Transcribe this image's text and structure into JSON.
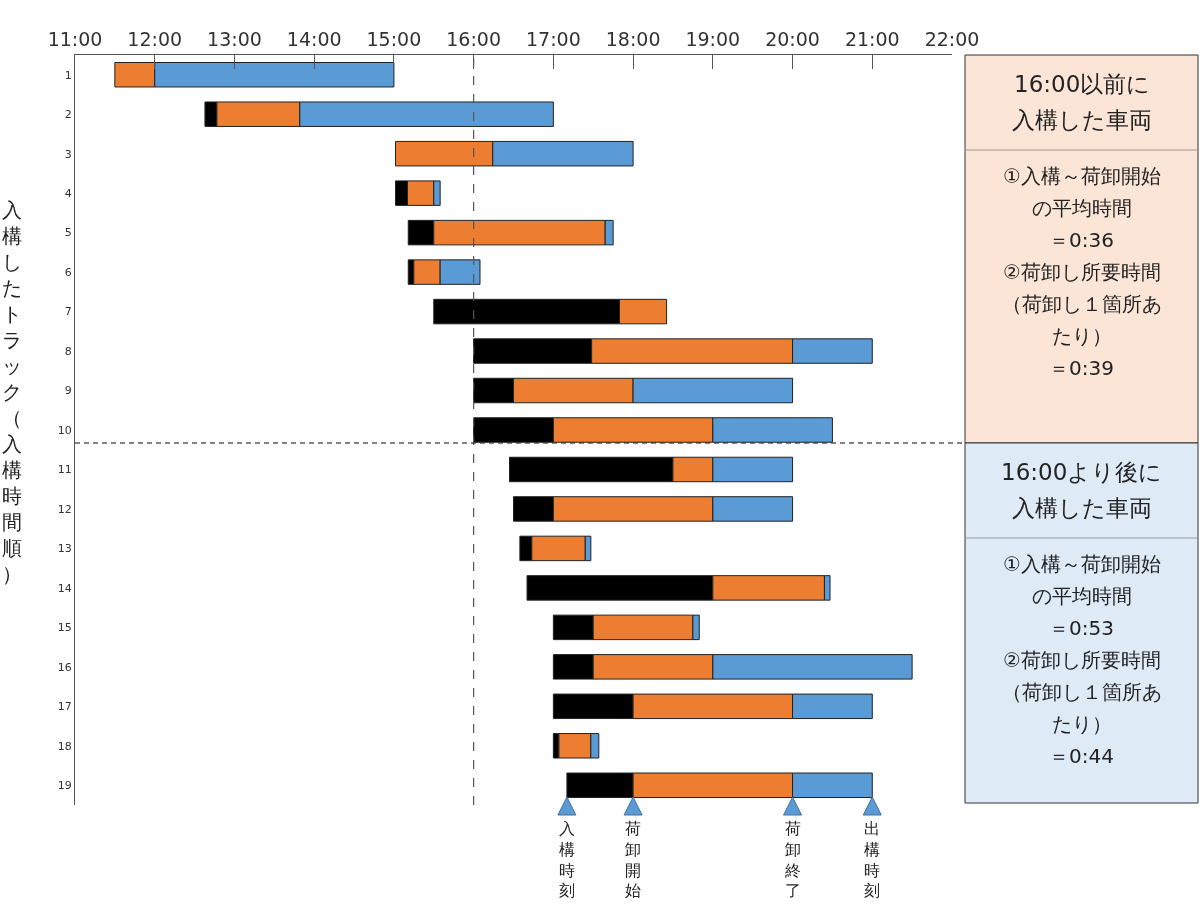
{
  "chart_data": {
    "type": "bar",
    "orientation": "horizontal",
    "categories": [
      "1",
      "2",
      "3",
      "4",
      "5",
      "6",
      "7",
      "8",
      "9",
      "10",
      "11",
      "12",
      "13",
      "14",
      "15",
      "16",
      "17",
      "18",
      "19"
    ],
    "series": [
      {
        "color": "#000000",
        "base": [
          null,
          12.63,
          null,
          15.02,
          15.18,
          15.18,
          15.5,
          16,
          16,
          16,
          16.45,
          16.5,
          16.58,
          16.67,
          17,
          17,
          17,
          17,
          17.17
        ],
        "values": [
          null,
          0.15,
          null,
          0.15,
          0.32,
          0.07,
          2.33,
          1.48,
          0.5,
          1,
          2.05,
          0.5,
          0.15,
          2.33,
          0.5,
          0.5,
          1,
          0.07,
          0.83
        ]
      },
      {
        "color": "#ed7d31",
        "base": [
          11.5,
          12.78,
          15.02,
          15.17,
          15.5,
          15.25,
          17.83,
          17.48,
          16.5,
          17,
          18.5,
          17,
          16.73,
          19,
          17.5,
          17.5,
          18,
          17.07,
          18
        ],
        "values": [
          0.5,
          1.04,
          1.22,
          0.33,
          2.15,
          0.33,
          0.59,
          2.52,
          1.5,
          2,
          0.5,
          2,
          0.67,
          1.4,
          1.25,
          1.5,
          2,
          0.4,
          2
        ]
      },
      {
        "color": "#5b9bd5",
        "base": [
          12,
          13.82,
          16.24,
          15.5,
          17.65,
          15.58,
          null,
          20,
          18,
          19,
          19,
          19,
          17.4,
          20.4,
          18.75,
          19,
          20,
          17.47,
          20
        ],
        "values": [
          3,
          3.18,
          1.76,
          0.08,
          0.1,
          0.5,
          null,
          1,
          2,
          1.5,
          1,
          1,
          0.07,
          0.07,
          0.08,
          2.5,
          1,
          0.1,
          1
        ]
      }
    ],
    "xlim": [
      11,
      22
    ],
    "xticks": [
      {
        "value": 11,
        "label": "11:00"
      },
      {
        "value": 12,
        "label": "12:00"
      },
      {
        "value": 13,
        "label": "13:00"
      },
      {
        "value": 14,
        "label": "14:00"
      },
      {
        "value": 15,
        "label": "15:00"
      },
      {
        "value": 16,
        "label": "16:00"
      },
      {
        "value": 17,
        "label": "17:00"
      },
      {
        "value": 18,
        "label": "18:00"
      },
      {
        "value": 19,
        "label": "19:00"
      },
      {
        "value": 20,
        "label": "20:00"
      },
      {
        "value": 21,
        "label": "21:00"
      },
      {
        "value": 22,
        "label": "22:00"
      }
    ],
    "ylabel": "入構したトラック（入構時間順）",
    "grid": false,
    "ref_lines": [
      {
        "axis": "x",
        "value": 16,
        "line_style": "dashed"
      }
    ],
    "annotations": [
      "16:00以前に",
      "入構した車両",
      "①入構～荷卸開始",
      "の平均時間",
      "＝0:36",
      "②荷卸し所要時間",
      "（荷卸し１箇所あ",
      "たり）",
      "＝0:39",
      "16:00より後に",
      "入構した車両",
      "①入構～荷卸開始",
      "の平均時間",
      "＝0:53",
      "②荷卸し所要時間",
      "（荷卸し１箇所あ",
      "たり）",
      "＝0:44",
      "入構時刻",
      "荷卸開始",
      "荷卸終了",
      "出構時刻"
    ]
  }
}
